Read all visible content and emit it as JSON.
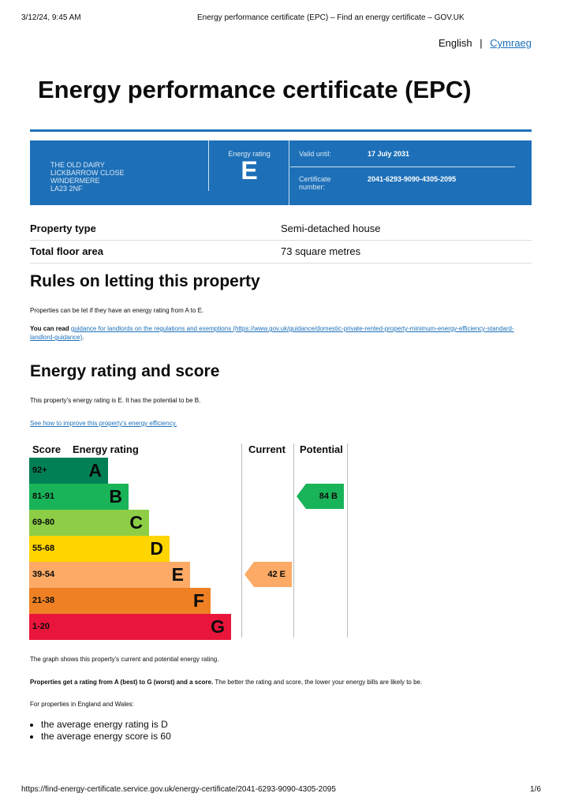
{
  "print_header": {
    "datetime": "3/12/24, 9:45 AM",
    "page_title": "Energy performance certificate (EPC) – Find an energy certificate – GOV.UK"
  },
  "language": {
    "english": "English",
    "separator": "|",
    "welsh": "Cymraeg"
  },
  "title": "Energy performance certificate (EPC)",
  "summary": {
    "address": [
      "THE OLD DAIRY",
      "LICKBARROW CLOSE",
      "WINDERMERE",
      "LA23 2NF"
    ],
    "rating_label": "Energy rating",
    "rating": "E",
    "valid_label": "Valid until:",
    "valid_value": "17 July 2031",
    "cert_label": "Certificate number:",
    "cert_value": "2041-6293-9090-4305-2095"
  },
  "property": [
    {
      "label": "Property type",
      "value": "Semi-detached house"
    },
    {
      "label": "Total floor area",
      "value": "73 square metres"
    }
  ],
  "letting": {
    "heading": "Rules on letting this property",
    "p1": "Properties can be let if they have an energy rating from A to E.",
    "p2_prefix": "You can read ",
    "p2_link": "guidance for landlords on the regulations and exemptions (https://www.gov.uk/guidance/domestic-private-rented-property-minimum-energy-efficiency-standard-landlord-guidance)",
    "p2_suffix": "."
  },
  "rating_section": {
    "heading": "Energy rating and score",
    "p1": "This property's energy rating is E. It has the potential to be B.",
    "link": "See how to improve this property's energy efficiency."
  },
  "chart_data": {
    "type": "table",
    "headers": [
      "Score",
      "Energy rating",
      "Current",
      "Potential"
    ],
    "bands": [
      {
        "range": "92+",
        "letter": "A",
        "color": "#008054"
      },
      {
        "range": "81-91",
        "letter": "B",
        "color": "#19b459"
      },
      {
        "range": "69-80",
        "letter": "C",
        "color": "#8dce46"
      },
      {
        "range": "55-68",
        "letter": "D",
        "color": "#ffd500"
      },
      {
        "range": "39-54",
        "letter": "E",
        "color": "#fcaa65"
      },
      {
        "range": "21-38",
        "letter": "F",
        "color": "#ef8023"
      },
      {
        "range": "1-20",
        "letter": "G",
        "color": "#e9153b"
      }
    ],
    "current": {
      "score": 42,
      "letter": "E",
      "label": "42 E",
      "color": "#fcaa65"
    },
    "potential": {
      "score": 84,
      "letter": "B",
      "label": "84 B",
      "color": "#19b459"
    }
  },
  "after": {
    "p1": "The graph shows this property's current and potential energy rating.",
    "p2_bold": "Properties get a rating from A (best) to G (worst) and a score.",
    "p2_rest": " The better the rating and score, the lower your energy bills are likely to be.",
    "p3": "For properties in England and Wales:",
    "bullets": [
      "the average energy rating is D",
      "the average energy score is 60"
    ]
  },
  "print_footer": {
    "url": "https://find-energy-certificate.service.gov.uk/energy-certificate/2041-6293-9090-4305-2095",
    "page": "1/6"
  }
}
